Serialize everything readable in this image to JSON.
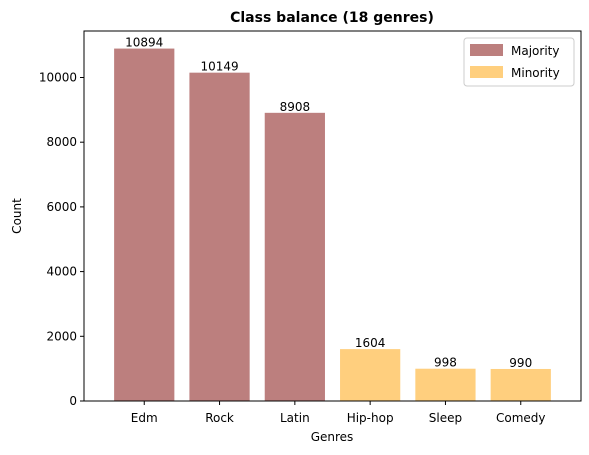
{
  "chart_data": {
    "type": "bar",
    "title": "Class balance (18 genres)",
    "xlabel": "Genres",
    "ylabel": "Count",
    "ylim": [
      0,
      11437
    ],
    "yticks": [
      0,
      2000,
      4000,
      6000,
      8000,
      10000
    ],
    "categories": [
      "Edm",
      "Rock",
      "Latin",
      "Hip-hop",
      "Sleep",
      "Comedy"
    ],
    "values": [
      10894,
      10149,
      8908,
      1604,
      998,
      990
    ],
    "groups": [
      "Majority",
      "Majority",
      "Majority",
      "Minority",
      "Minority",
      "Minority"
    ],
    "legend": [
      {
        "label": "Majority",
        "color": "#bc7f7e"
      },
      {
        "label": "Minority",
        "color": "#ffcf7e"
      }
    ],
    "legend_position": "top-right"
  }
}
